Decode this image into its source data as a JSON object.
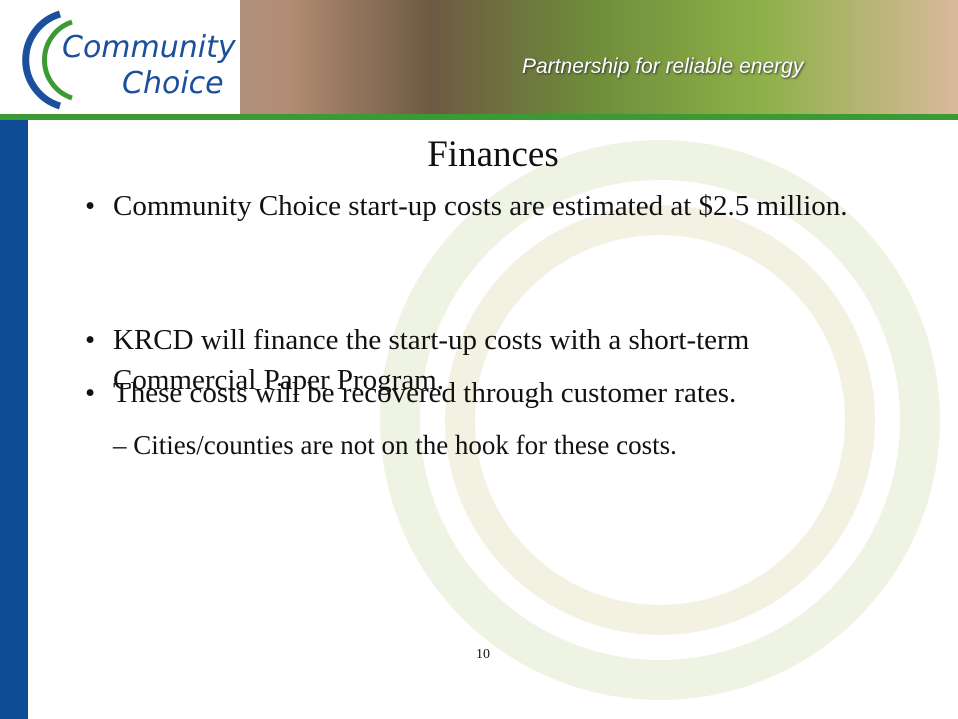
{
  "header": {
    "logo_line1": "Community",
    "logo_line2": "Choice",
    "tagline": "Partnership for reliable energy"
  },
  "title": "Finances",
  "bullets": [
    {
      "text": "Community Choice start-up costs are estimated at $2.5 million."
    },
    {
      "text": "KRCD will finance the start-up costs with a short-term Commercial Paper Program."
    },
    {
      "text": "These costs will be recovered through customer rates.",
      "subbullets": [
        "Cities/counties are not on the hook for these costs."
      ]
    }
  ],
  "page_number": "10"
}
